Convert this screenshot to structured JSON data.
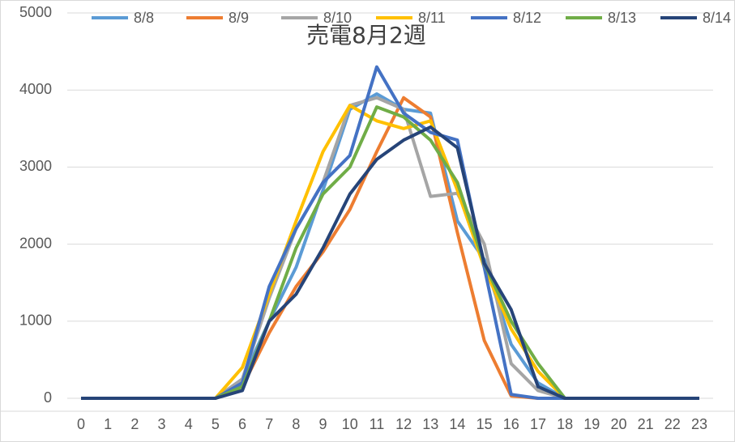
{
  "chart_data": {
    "type": "line",
    "title": "売電8月2週",
    "categories": [
      "0",
      "1",
      "2",
      "3",
      "4",
      "5",
      "6",
      "7",
      "8",
      "9",
      "10",
      "11",
      "12",
      "13",
      "14",
      "15",
      "16",
      "17",
      "18",
      "19",
      "20",
      "21",
      "22",
      "23"
    ],
    "series": [
      {
        "name": "8/8",
        "color": "#5b9bd5",
        "values": [
          0,
          0,
          0,
          0,
          0,
          0,
          250,
          1000,
          1700,
          2700,
          3750,
          3950,
          3750,
          3700,
          2300,
          1800,
          700,
          200,
          0,
          0,
          0,
          0,
          0,
          0
        ]
      },
      {
        "name": "8/9",
        "color": "#ed7d31",
        "values": [
          0,
          0,
          0,
          0,
          0,
          0,
          150,
          850,
          1450,
          1900,
          2450,
          3200,
          3900,
          3650,
          2150,
          750,
          30,
          0,
          0,
          0,
          0,
          0,
          0,
          0
        ]
      },
      {
        "name": "8/10",
        "color": "#a5a5a5",
        "values": [
          0,
          0,
          0,
          0,
          0,
          0,
          250,
          1300,
          2200,
          2800,
          3800,
          3900,
          3750,
          2620,
          2660,
          2000,
          450,
          100,
          0,
          0,
          0,
          0,
          0,
          0
        ]
      },
      {
        "name": "8/11",
        "color": "#ffc000",
        "values": [
          0,
          0,
          0,
          0,
          0,
          0,
          400,
          1350,
          2300,
          3200,
          3800,
          3600,
          3500,
          3600,
          2700,
          1700,
          900,
          350,
          0,
          0,
          0,
          0,
          0,
          0
        ]
      },
      {
        "name": "8/12",
        "color": "#4472c4",
        "values": [
          0,
          0,
          0,
          0,
          0,
          0,
          200,
          1450,
          2200,
          2800,
          3150,
          4300,
          3700,
          3450,
          3350,
          1700,
          50,
          0,
          0,
          0,
          0,
          0,
          0,
          0
        ]
      },
      {
        "name": "8/13",
        "color": "#70ad47",
        "values": [
          0,
          0,
          0,
          0,
          0,
          0,
          150,
          1000,
          1950,
          2650,
          3000,
          3780,
          3650,
          3350,
          2800,
          1750,
          1000,
          450,
          0,
          0,
          0,
          0,
          0,
          0
        ]
      },
      {
        "name": "8/14",
        "color": "#264478",
        "values": [
          0,
          0,
          0,
          0,
          0,
          0,
          100,
          1000,
          1350,
          1950,
          2650,
          3100,
          3350,
          3520,
          3250,
          1750,
          1150,
          150,
          0,
          0,
          0,
          0,
          0,
          0
        ]
      }
    ],
    "ylim": [
      0,
      5000
    ],
    "yticks": [
      0,
      1000,
      2000,
      3000,
      4000,
      5000
    ],
    "grid": true,
    "legend": "top"
  }
}
